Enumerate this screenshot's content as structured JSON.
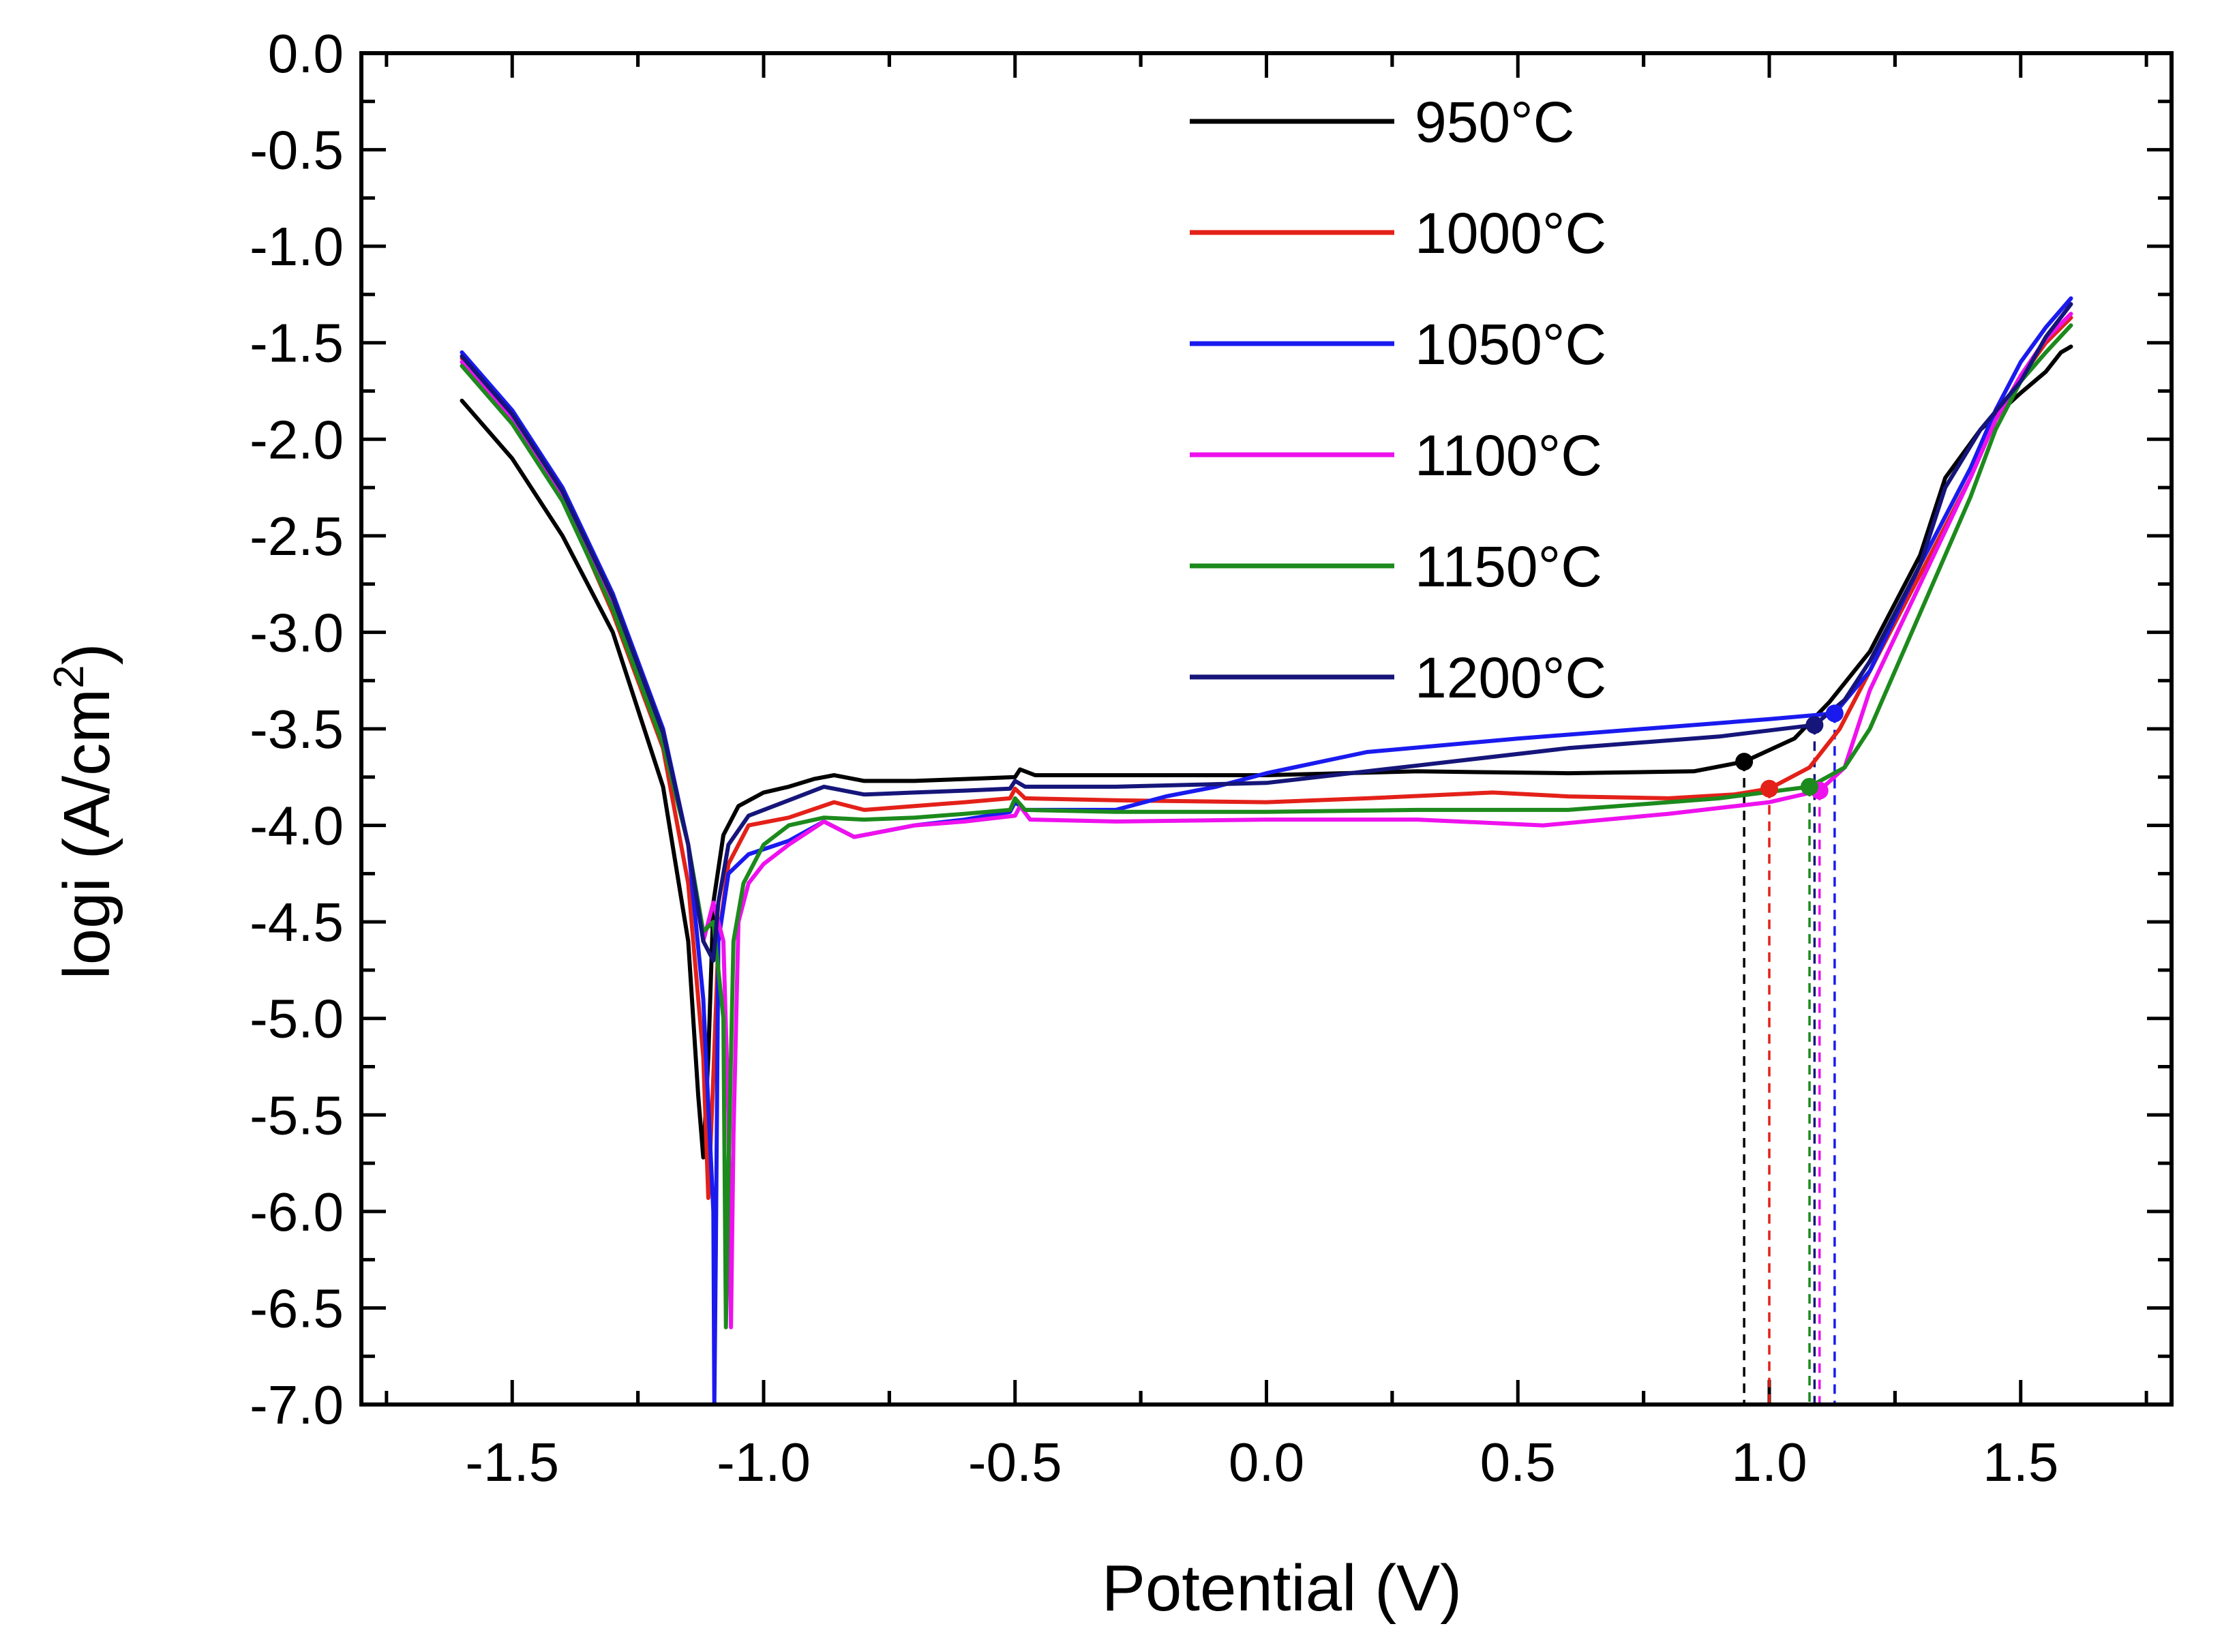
{
  "chart_data": {
    "type": "line",
    "title": "",
    "xlabel": "Potential (V)",
    "ylabel_main": "logi (A/cm",
    "ylabel_sup": "2",
    "ylabel_close": ")",
    "xlim": [
      -1.8,
      1.8
    ],
    "ylim": [
      -7.0,
      0.0
    ],
    "x_ticks": [
      -1.5,
      -1.0,
      -0.5,
      0.0,
      0.5,
      1.0,
      1.5
    ],
    "x_tick_labels": [
      "-1.5",
      "-1.0",
      "-0.5",
      "0.0",
      "0.5",
      "1.0",
      "1.5"
    ],
    "y_ticks": [
      0.0,
      -0.5,
      -1.0,
      -1.5,
      -2.0,
      -2.5,
      -3.0,
      -3.5,
      -4.0,
      -4.5,
      -5.0,
      -5.5,
      -6.0,
      -6.5,
      -7.0
    ],
    "y_tick_labels": [
      "0.0",
      "-0.5",
      "-1.0",
      "-1.5",
      "-2.0",
      "-2.5",
      "-3.0",
      "-3.5",
      "-4.0",
      "-4.5",
      "-5.0",
      "-5.5",
      "-6.0",
      "-6.5",
      "-7.0"
    ],
    "legend_position": "top-center",
    "series": [
      {
        "name": "950°C",
        "color": "#000000",
        "breakdown": {
          "x": 0.95,
          "y": -3.67
        },
        "points": [
          [
            -1.6,
            -1.8
          ],
          [
            -1.5,
            -2.1
          ],
          [
            -1.4,
            -2.5
          ],
          [
            -1.3,
            -3.0
          ],
          [
            -1.2,
            -3.8
          ],
          [
            -1.15,
            -4.6
          ],
          [
            -1.13,
            -5.4
          ],
          [
            -1.12,
            -5.72
          ],
          [
            -1.11,
            -5.2
          ],
          [
            -1.1,
            -4.4
          ],
          [
            -1.08,
            -4.05
          ],
          [
            -1.05,
            -3.9
          ],
          [
            -1.0,
            -3.83
          ],
          [
            -0.95,
            -3.8
          ],
          [
            -0.9,
            -3.76
          ],
          [
            -0.86,
            -3.74
          ],
          [
            -0.8,
            -3.77
          ],
          [
            -0.7,
            -3.77
          ],
          [
            -0.6,
            -3.76
          ],
          [
            -0.5,
            -3.75
          ],
          [
            -0.49,
            -3.71
          ],
          [
            -0.46,
            -3.74
          ],
          [
            -0.3,
            -3.74
          ],
          [
            0.0,
            -3.74
          ],
          [
            0.3,
            -3.72
          ],
          [
            0.6,
            -3.73
          ],
          [
            0.85,
            -3.72
          ],
          [
            0.95,
            -3.67
          ],
          [
            1.05,
            -3.55
          ],
          [
            1.12,
            -3.36
          ],
          [
            1.2,
            -3.1
          ],
          [
            1.3,
            -2.6
          ],
          [
            1.35,
            -2.2
          ],
          [
            1.42,
            -1.95
          ],
          [
            1.5,
            -1.76
          ],
          [
            1.55,
            -1.65
          ],
          [
            1.58,
            -1.55
          ],
          [
            1.6,
            -1.52
          ]
        ]
      },
      {
        "name": "1000°C",
        "color": "#e32119",
        "breakdown": {
          "x": 1.0,
          "y": -3.81
        },
        "points": [
          [
            -1.6,
            -1.58
          ],
          [
            -1.5,
            -1.9
          ],
          [
            -1.4,
            -2.3
          ],
          [
            -1.3,
            -2.9
          ],
          [
            -1.2,
            -3.6
          ],
          [
            -1.15,
            -4.3
          ],
          [
            -1.12,
            -5.2
          ],
          [
            -1.11,
            -5.93
          ],
          [
            -1.1,
            -5.3
          ],
          [
            -1.09,
            -4.6
          ],
          [
            -1.07,
            -4.2
          ],
          [
            -1.03,
            -4.0
          ],
          [
            -0.95,
            -3.96
          ],
          [
            -0.86,
            -3.88
          ],
          [
            -0.8,
            -3.92
          ],
          [
            -0.7,
            -3.9
          ],
          [
            -0.6,
            -3.88
          ],
          [
            -0.51,
            -3.86
          ],
          [
            -0.5,
            -3.81
          ],
          [
            -0.48,
            -3.86
          ],
          [
            -0.3,
            -3.87
          ],
          [
            0.0,
            -3.88
          ],
          [
            0.2,
            -3.86
          ],
          [
            0.45,
            -3.83
          ],
          [
            0.6,
            -3.85
          ],
          [
            0.8,
            -3.86
          ],
          [
            0.93,
            -3.84
          ],
          [
            1.0,
            -3.81
          ],
          [
            1.08,
            -3.7
          ],
          [
            1.14,
            -3.5
          ],
          [
            1.2,
            -3.2
          ],
          [
            1.3,
            -2.7
          ],
          [
            1.4,
            -2.2
          ],
          [
            1.45,
            -1.9
          ],
          [
            1.5,
            -1.68
          ],
          [
            1.55,
            -1.5
          ],
          [
            1.6,
            -1.37
          ]
        ]
      },
      {
        "name": "1050°C",
        "color": "#1a1aef",
        "breakdown": {
          "x": 1.13,
          "y": -3.42
        },
        "points": [
          [
            -1.6,
            -1.55
          ],
          [
            -1.5,
            -1.85
          ],
          [
            -1.4,
            -2.25
          ],
          [
            -1.3,
            -2.8
          ],
          [
            -1.2,
            -3.5
          ],
          [
            -1.15,
            -4.1
          ],
          [
            -1.12,
            -4.9
          ],
          [
            -1.1,
            -6.0
          ],
          [
            -1.098,
            -7.0
          ],
          [
            -1.095,
            -6.2
          ],
          [
            -1.09,
            -4.6
          ],
          [
            -1.07,
            -4.25
          ],
          [
            -1.03,
            -4.15
          ],
          [
            -0.95,
            -4.08
          ],
          [
            -0.88,
            -3.98
          ],
          [
            -0.82,
            -4.06
          ],
          [
            -0.7,
            -4.0
          ],
          [
            -0.6,
            -3.97
          ],
          [
            -0.51,
            -3.93
          ],
          [
            -0.5,
            -3.88
          ],
          [
            -0.48,
            -3.92
          ],
          [
            -0.3,
            -3.92
          ],
          [
            -0.2,
            -3.85
          ],
          [
            -0.1,
            -3.8
          ],
          [
            0.0,
            -3.73
          ],
          [
            0.2,
            -3.62
          ],
          [
            0.5,
            -3.55
          ],
          [
            0.8,
            -3.49
          ],
          [
            1.0,
            -3.45
          ],
          [
            1.13,
            -3.42
          ],
          [
            1.2,
            -3.2
          ],
          [
            1.3,
            -2.65
          ],
          [
            1.4,
            -2.15
          ],
          [
            1.45,
            -1.85
          ],
          [
            1.5,
            -1.6
          ],
          [
            1.55,
            -1.42
          ],
          [
            1.6,
            -1.27
          ]
        ]
      },
      {
        "name": "1100°C",
        "color": "#ee11ee",
        "breakdown": {
          "x": 1.1,
          "y": -3.82
        },
        "points": [
          [
            -1.6,
            -1.6
          ],
          [
            -1.5,
            -1.9
          ],
          [
            -1.4,
            -2.3
          ],
          [
            -1.3,
            -2.85
          ],
          [
            -1.2,
            -3.55
          ],
          [
            -1.15,
            -4.1
          ],
          [
            -1.12,
            -4.6
          ],
          [
            -1.1,
            -4.4
          ],
          [
            -1.08,
            -4.6
          ],
          [
            -1.07,
            -5.5
          ],
          [
            -1.065,
            -6.6
          ],
          [
            -1.06,
            -5.6
          ],
          [
            -1.05,
            -4.5
          ],
          [
            -1.03,
            -4.3
          ],
          [
            -1.0,
            -4.2
          ],
          [
            -0.95,
            -4.1
          ],
          [
            -0.88,
            -3.98
          ],
          [
            -0.82,
            -4.06
          ],
          [
            -0.7,
            -4.0
          ],
          [
            -0.6,
            -3.98
          ],
          [
            -0.5,
            -3.95
          ],
          [
            -0.49,
            -3.9
          ],
          [
            -0.47,
            -3.97
          ],
          [
            -0.3,
            -3.98
          ],
          [
            0.0,
            -3.97
          ],
          [
            0.3,
            -3.97
          ],
          [
            0.55,
            -4.0
          ],
          [
            0.8,
            -3.94
          ],
          [
            1.0,
            -3.88
          ],
          [
            1.1,
            -3.82
          ],
          [
            1.15,
            -3.7
          ],
          [
            1.2,
            -3.3
          ],
          [
            1.3,
            -2.75
          ],
          [
            1.4,
            -2.2
          ],
          [
            1.45,
            -1.9
          ],
          [
            1.5,
            -1.67
          ],
          [
            1.55,
            -1.48
          ],
          [
            1.6,
            -1.35
          ]
        ]
      },
      {
        "name": "1150°C",
        "color": "#1c8a1c",
        "breakdown": {
          "x": 1.08,
          "y": -3.8
        },
        "points": [
          [
            -1.6,
            -1.62
          ],
          [
            -1.5,
            -1.92
          ],
          [
            -1.4,
            -2.32
          ],
          [
            -1.3,
            -2.88
          ],
          [
            -1.2,
            -3.58
          ],
          [
            -1.15,
            -4.1
          ],
          [
            -1.12,
            -4.55
          ],
          [
            -1.1,
            -4.5
          ],
          [
            -1.08,
            -5.0
          ],
          [
            -1.075,
            -6.6
          ],
          [
            -1.07,
            -5.8
          ],
          [
            -1.06,
            -4.6
          ],
          [
            -1.04,
            -4.3
          ],
          [
            -1.0,
            -4.1
          ],
          [
            -0.95,
            -4.0
          ],
          [
            -0.88,
            -3.96
          ],
          [
            -0.8,
            -3.97
          ],
          [
            -0.7,
            -3.96
          ],
          [
            -0.6,
            -3.94
          ],
          [
            -0.51,
            -3.92
          ],
          [
            -0.5,
            -3.86
          ],
          [
            -0.48,
            -3.92
          ],
          [
            -0.3,
            -3.93
          ],
          [
            0.0,
            -3.93
          ],
          [
            0.3,
            -3.92
          ],
          [
            0.6,
            -3.92
          ],
          [
            0.9,
            -3.86
          ],
          [
            1.08,
            -3.8
          ],
          [
            1.15,
            -3.7
          ],
          [
            1.2,
            -3.5
          ],
          [
            1.3,
            -2.9
          ],
          [
            1.4,
            -2.3
          ],
          [
            1.45,
            -1.95
          ],
          [
            1.5,
            -1.7
          ],
          [
            1.55,
            -1.55
          ],
          [
            1.6,
            -1.41
          ]
        ]
      },
      {
        "name": "1200°C",
        "color": "#15157a",
        "breakdown": {
          "x": 1.09,
          "y": -3.48
        },
        "points": [
          [
            -1.6,
            -1.57
          ],
          [
            -1.5,
            -1.87
          ],
          [
            -1.4,
            -2.27
          ],
          [
            -1.3,
            -2.82
          ],
          [
            -1.2,
            -3.52
          ],
          [
            -1.15,
            -4.1
          ],
          [
            -1.12,
            -4.6
          ],
          [
            -1.1,
            -4.7
          ],
          [
            -1.09,
            -4.4
          ],
          [
            -1.07,
            -4.1
          ],
          [
            -1.03,
            -3.95
          ],
          [
            -0.95,
            -3.87
          ],
          [
            -0.88,
            -3.8
          ],
          [
            -0.8,
            -3.84
          ],
          [
            -0.7,
            -3.83
          ],
          [
            -0.6,
            -3.82
          ],
          [
            -0.51,
            -3.81
          ],
          [
            -0.5,
            -3.77
          ],
          [
            -0.48,
            -3.8
          ],
          [
            -0.3,
            -3.8
          ],
          [
            0.0,
            -3.78
          ],
          [
            0.3,
            -3.69
          ],
          [
            0.6,
            -3.6
          ],
          [
            0.9,
            -3.54
          ],
          [
            1.09,
            -3.48
          ],
          [
            1.15,
            -3.35
          ],
          [
            1.2,
            -3.15
          ],
          [
            1.3,
            -2.65
          ],
          [
            1.35,
            -2.25
          ],
          [
            1.42,
            -1.95
          ],
          [
            1.5,
            -1.7
          ],
          [
            1.55,
            -1.47
          ],
          [
            1.6,
            -1.3
          ]
        ]
      }
    ]
  }
}
